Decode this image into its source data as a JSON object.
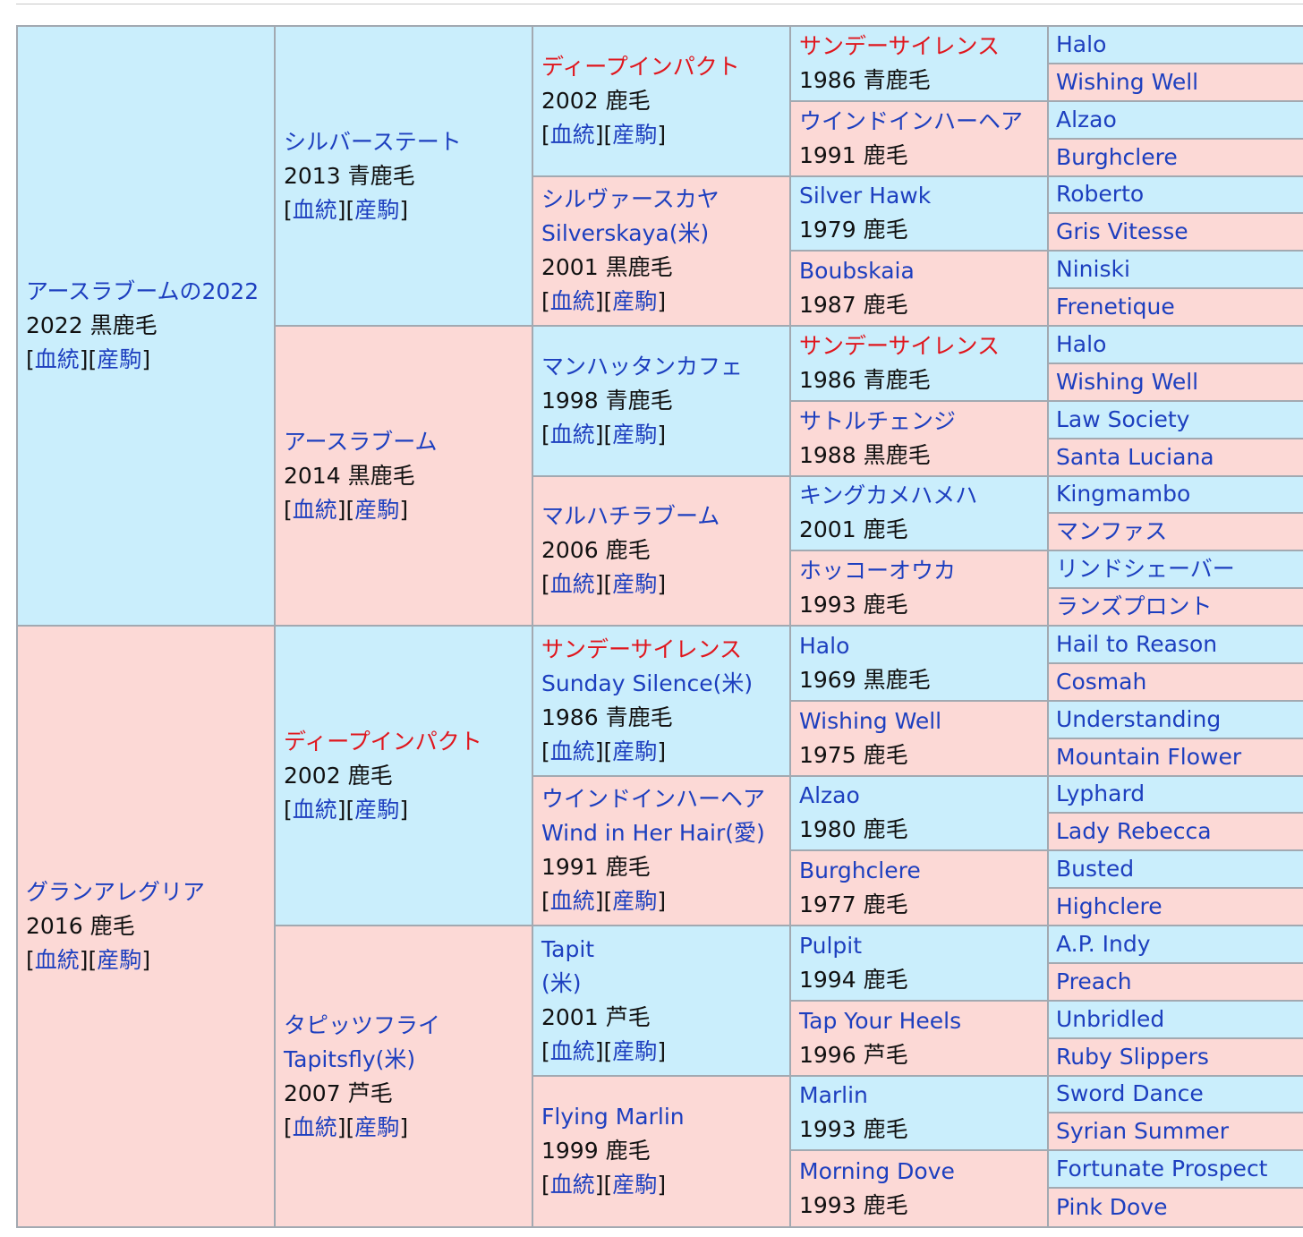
{
  "pedigree": {
    "link_labels": {
      "bloodline": "血統",
      "progeny": "産駒"
    },
    "gen1": [
      {
        "name": "アースラブームの2022",
        "info": "2022 黒鹿毛",
        "links": true
      },
      {
        "name": "グランアレグリア",
        "info": "2016 鹿毛",
        "links": true
      }
    ],
    "gen2": [
      {
        "name": "シルバーステート",
        "info": "2013 青鹿毛",
        "links": true
      },
      {
        "name": "アースラブーム",
        "info": "2014 黒鹿毛",
        "links": true
      },
      {
        "name": "ディープインパクト",
        "red": true,
        "info": "2002 鹿毛",
        "links": true
      },
      {
        "name": "タピッツフライ",
        "sub": "Tapitsfly(米)",
        "info": "2007 芦毛",
        "links": true
      }
    ],
    "gen3": [
      {
        "name": "ディープインパクト",
        "red": true,
        "info": "2002 鹿毛",
        "links": true
      },
      {
        "name": "シルヴァースカヤ",
        "sub": "Silverskaya(米)",
        "info": "2001 黒鹿毛",
        "links": true
      },
      {
        "name": "マンハッタンカフェ",
        "info": "1998 青鹿毛",
        "links": true
      },
      {
        "name": "マルハチラブーム",
        "info": "2006 鹿毛",
        "links": true
      },
      {
        "name": "サンデーサイレンス",
        "red": true,
        "sub": "Sunday Silence(米)",
        "info": "1986 青鹿毛",
        "links": true
      },
      {
        "name": "ウインドインハーヘア",
        "sub": "Wind in Her Hair(愛)",
        "info": "1991 鹿毛",
        "links": true
      },
      {
        "name": "Tapit",
        "sub": "(米)",
        "info": "2001 芦毛",
        "links": true
      },
      {
        "name": "Flying Marlin",
        "info": "1999 鹿毛",
        "links": true
      }
    ],
    "gen4": [
      {
        "name": "サンデーサイレンス",
        "red": true,
        "info": "1986 青鹿毛"
      },
      {
        "name": "ウインドインハーヘア",
        "info": "1991 鹿毛"
      },
      {
        "name": "Silver Hawk",
        "info": "1979 鹿毛"
      },
      {
        "name": "Boubskaia",
        "info": "1987 鹿毛"
      },
      {
        "name": "サンデーサイレンス",
        "red": true,
        "info": "1986 青鹿毛"
      },
      {
        "name": "サトルチェンジ",
        "info": "1988 黒鹿毛"
      },
      {
        "name": "キングカメハメハ",
        "info": "2001 鹿毛"
      },
      {
        "name": "ホッコーオウカ",
        "info": "1993 鹿毛"
      },
      {
        "name": "Halo",
        "info": "1969 黒鹿毛"
      },
      {
        "name": "Wishing Well",
        "info": "1975 鹿毛"
      },
      {
        "name": "Alzao",
        "info": "1980 鹿毛"
      },
      {
        "name": "Burghclere",
        "info": "1977 鹿毛"
      },
      {
        "name": "Pulpit",
        "info": "1994 鹿毛"
      },
      {
        "name": "Tap Your Heels",
        "info": "1996 芦毛"
      },
      {
        "name": "Marlin",
        "info": "1993 鹿毛"
      },
      {
        "name": "Morning Dove",
        "info": "1993 鹿毛"
      }
    ],
    "gen5": [
      "Halo",
      "Wishing Well",
      "Alzao",
      "Burghclere",
      "Roberto",
      "Gris Vitesse",
      "Niniski",
      "Frenetique",
      "Halo",
      "Wishing Well",
      "Law Society",
      "Santa Luciana",
      "Kingmambo",
      "マンファス",
      "リンドシェーバー",
      "ランズプロント",
      "Hail to Reason",
      "Cosmah",
      "Understanding",
      "Mountain Flower",
      "Lyphard",
      "Lady Rebecca",
      "Busted",
      "Highclere",
      "A.P. Indy",
      "Preach",
      "Unbridled",
      "Ruby Slippers",
      "Sword Dance",
      "Syrian Summer",
      "Fortunate Prospect",
      "Pink Dove"
    ],
    "colors": {
      "male_bg": "#caeefc",
      "female_bg": "#fcd9d6",
      "link": "#1d3fbf",
      "highlight": "#e0161d",
      "border": "#a2a9b1"
    }
  }
}
